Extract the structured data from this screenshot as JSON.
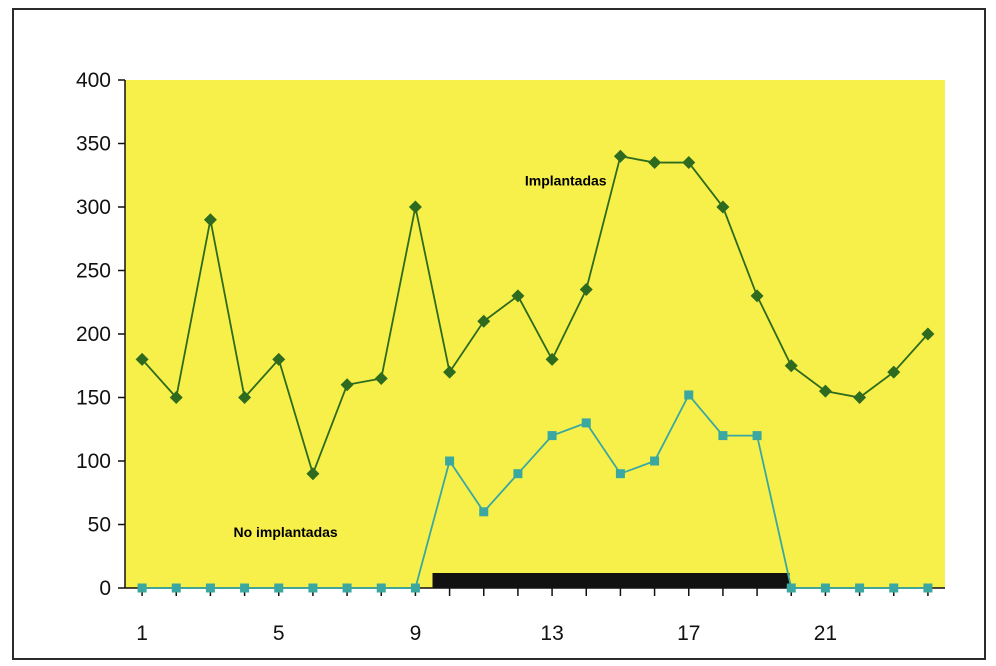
{
  "chart_data": {
    "type": "line",
    "x": [
      1,
      2,
      3,
      4,
      5,
      6,
      7,
      8,
      9,
      10,
      11,
      12,
      13,
      14,
      15,
      16,
      17,
      18,
      19,
      20,
      21,
      22,
      23,
      24
    ],
    "xticks": [
      1,
      5,
      9,
      13,
      17,
      21
    ],
    "yticks": [
      0,
      50,
      100,
      150,
      200,
      250,
      300,
      350,
      400
    ],
    "ylim": [
      0,
      400
    ],
    "xlim": [
      0.5,
      24.5
    ],
    "grid": false,
    "legend": "none",
    "plot_background": "#f7f04a",
    "series": [
      {
        "name": "Implantadas",
        "color": "#2e6b1f",
        "marker": "diamond",
        "values": [
          180,
          150,
          290,
          150,
          180,
          90,
          160,
          165,
          300,
          170,
          210,
          230,
          180,
          235,
          340,
          335,
          335,
          300,
          230,
          175,
          155,
          150,
          170,
          200
        ]
      },
      {
        "name": "No implantadas",
        "color": "#3aa8a0",
        "marker": "square",
        "values": [
          0,
          0,
          0,
          0,
          0,
          0,
          0,
          0,
          0,
          100,
          60,
          90,
          120,
          130,
          90,
          100,
          152,
          120,
          120,
          0,
          0,
          0,
          0,
          0
        ]
      }
    ],
    "annotations": [
      {
        "text": "Implantadas",
        "x": 13.4,
        "y": 317
      },
      {
        "text": "No implantadas",
        "x": 5.2,
        "y": 40
      }
    ],
    "bar_marker": {
      "x_start": 9.5,
      "x_end": 19.95,
      "color": "#111111"
    }
  }
}
